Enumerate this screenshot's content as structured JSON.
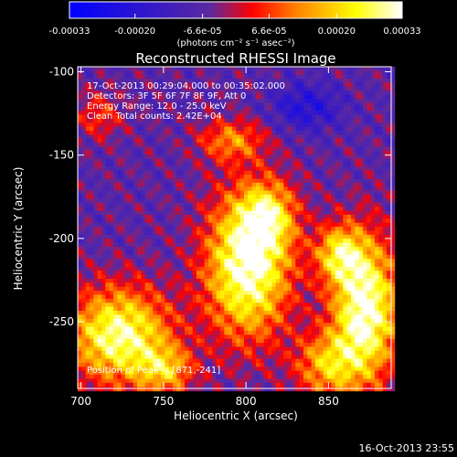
{
  "chart_data": {
    "type": "heatmap",
    "title": "Reconstructed RHESSI Image",
    "xlabel": "Heliocentric X (arcsec)",
    "ylabel": "Heliocentric Y (arcsec)",
    "xlim": [
      698,
      888
    ],
    "ylim": [
      -290,
      -97
    ],
    "x_ticks": [
      "700",
      "750",
      "800",
      "850"
    ],
    "y_ticks": [
      "-100",
      "-150",
      "-200",
      "-250"
    ],
    "x_tick_values": [
      700,
      750,
      800,
      850
    ],
    "y_tick_values": [
      -100,
      -150,
      -200,
      -250
    ],
    "colorbar": {
      "range": [
        -0.00033,
        0.00033
      ],
      "tick_values": [
        -0.00033,
        -0.0002,
        -6.6e-05,
        6.6e-05,
        0.0002,
        0.00033
      ],
      "tick_labels": [
        "-0.00033",
        "-0.00020",
        "-6.6e-05",
        "6.6e-05",
        "0.00020",
        "0.00033"
      ],
      "unit_label": "(photons cm⁻² s⁻¹ asec⁻²)",
      "colors": [
        "#0000ff",
        "#5a2aa0",
        "#ff0000",
        "#ff8000",
        "#ffff00",
        "#ffffff"
      ]
    },
    "annotations": [
      "17-Oct-2013 00:29:04.000 to 00:35:02.000",
      "Detectors: 3F 5F 6F 7F 8F 9F, Att 0",
      "Energy Range: 12.0 - 25.0 keV",
      "Clean     Total counts: 2.42E+04",
      "Position of Peak = [871,-241]"
    ],
    "peak": {
      "x": 871,
      "y": -241
    },
    "sources": [
      {
        "x": 800,
        "y": -215,
        "sx": 18,
        "sy": 30,
        "amp": 1.0
      },
      {
        "x": 812,
        "y": -185,
        "sx": 12,
        "sy": 14,
        "amp": 0.55
      },
      {
        "x": 722,
        "y": -257,
        "sx": 22,
        "sy": 20,
        "amp": 0.9
      },
      {
        "x": 750,
        "y": -278,
        "sx": 12,
        "sy": 10,
        "amp": 0.5
      },
      {
        "x": 871,
        "y": -241,
        "sx": 14,
        "sy": 30,
        "amp": 1.0
      },
      {
        "x": 855,
        "y": -208,
        "sx": 10,
        "sy": 12,
        "amp": 0.6
      },
      {
        "x": 848,
        "y": -275,
        "sx": 14,
        "sy": 14,
        "amp": 0.55
      },
      {
        "x": 790,
        "y": -140,
        "sx": 14,
        "sy": 9,
        "amp": 0.45
      },
      {
        "x": 710,
        "y": -125,
        "sx": 10,
        "sy": 10,
        "amp": 0.3
      },
      {
        "x": 835,
        "y": -120,
        "sx": 15,
        "sy": 10,
        "amp": -0.35
      }
    ],
    "grid": false
  },
  "footer": {
    "timestamp": "16-Oct-2013 23:55"
  }
}
